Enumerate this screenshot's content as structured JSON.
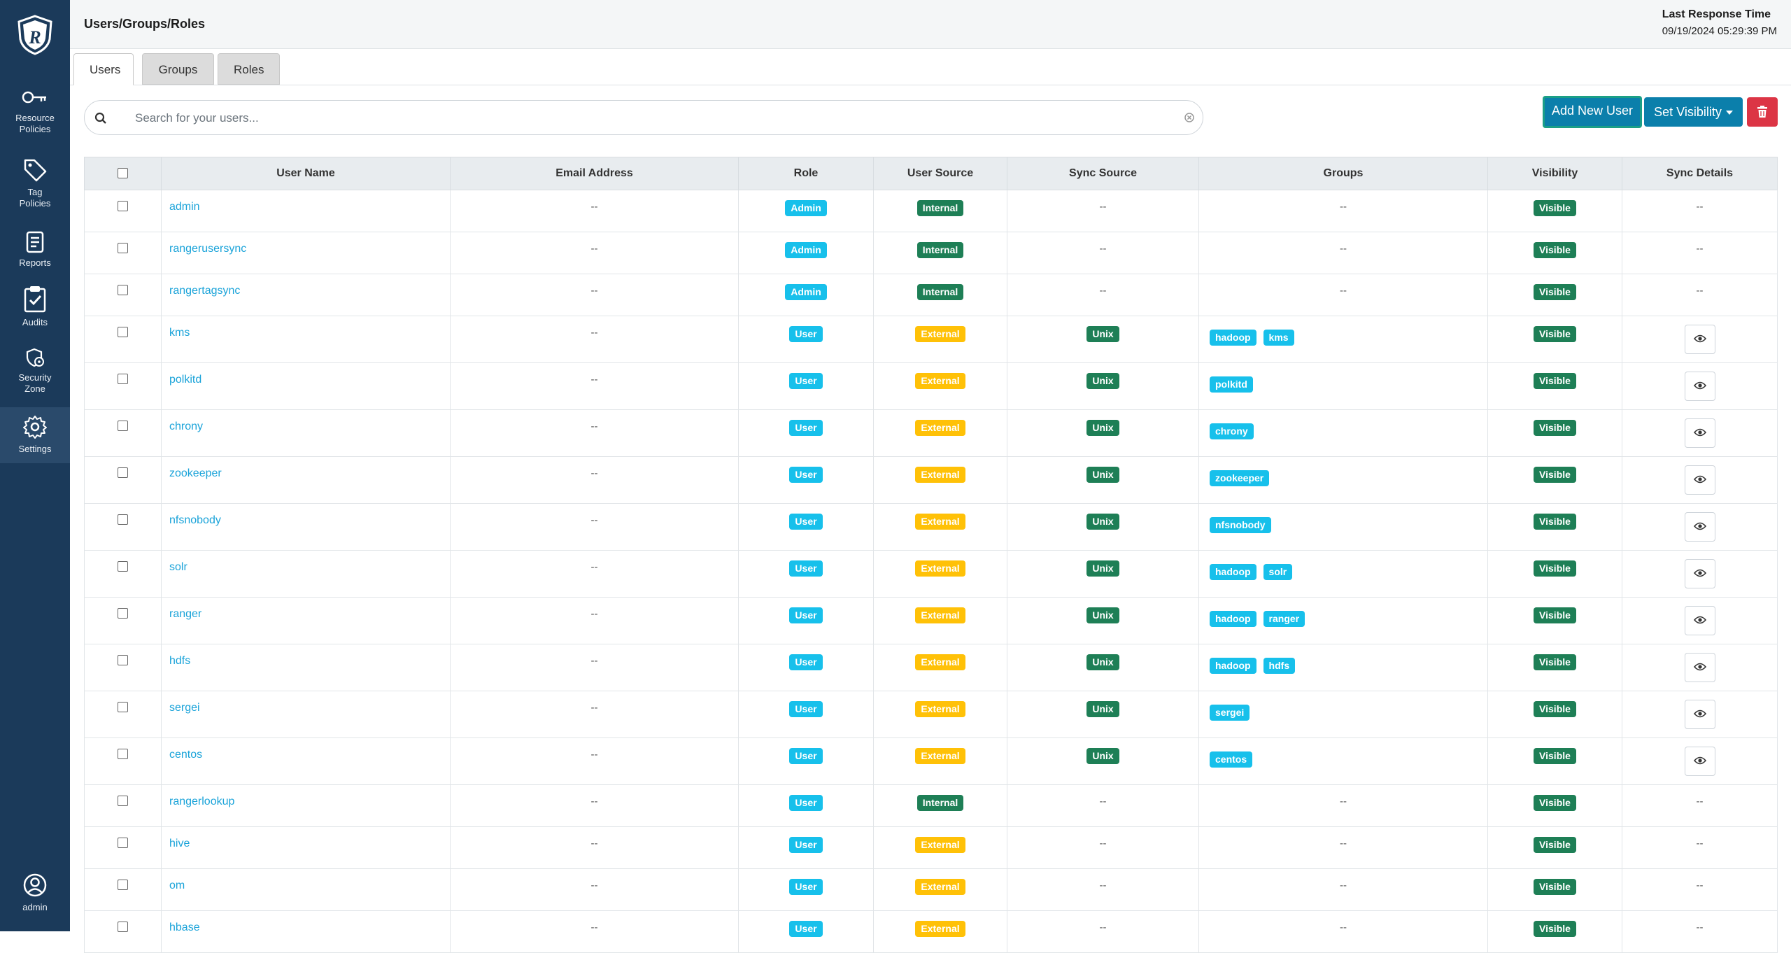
{
  "sidebar": {
    "items": [
      {
        "id": "resource-policies",
        "label": "Resource\nPolicies",
        "icon": "key-icon"
      },
      {
        "id": "tag-policies",
        "label": "Tag\nPolicies",
        "icon": "tag-icon"
      },
      {
        "id": "reports",
        "label": "Reports",
        "icon": "report-icon"
      },
      {
        "id": "audits",
        "label": "Audits",
        "icon": "clipboard-check-icon"
      },
      {
        "id": "security-zone",
        "label": "Security\nZone",
        "icon": "shield-lock-icon"
      },
      {
        "id": "settings",
        "label": "Settings",
        "icon": "gear-icon"
      }
    ],
    "user": {
      "label": "admin",
      "icon": "user-circle-icon"
    }
  },
  "header": {
    "title": "Users/Groups/Roles",
    "response_title": "Last Response Time",
    "response_time": "09/19/2024 05:29:39 PM"
  },
  "tabs": [
    {
      "label": "Users",
      "active": true
    },
    {
      "label": "Groups",
      "active": false
    },
    {
      "label": "Roles",
      "active": false
    }
  ],
  "search": {
    "placeholder": "Search for your users...",
    "value": ""
  },
  "actions": {
    "add_label": "Add New User",
    "visibility_label": "Set Visibility"
  },
  "table": {
    "columns": [
      "User Name",
      "Email Address",
      "Role",
      "User Source",
      "Sync Source",
      "Groups",
      "Visibility",
      "Sync Details"
    ],
    "rows": [
      {
        "name": "admin",
        "email": "--",
        "role": "Admin",
        "source": "Internal",
        "sync": "--",
        "groups": [],
        "visibility": "Visible",
        "sync_details": "--"
      },
      {
        "name": "rangerusersync",
        "email": "--",
        "role": "Admin",
        "source": "Internal",
        "sync": "--",
        "groups": [],
        "visibility": "Visible",
        "sync_details": "--"
      },
      {
        "name": "rangertagsync",
        "email": "--",
        "role": "Admin",
        "source": "Internal",
        "sync": "--",
        "groups": [],
        "visibility": "Visible",
        "sync_details": "--"
      },
      {
        "name": "kms",
        "email": "--",
        "role": "User",
        "source": "External",
        "sync": "Unix",
        "groups": [
          "hadoop",
          "kms"
        ],
        "visibility": "Visible",
        "sync_details": "eye"
      },
      {
        "name": "polkitd",
        "email": "--",
        "role": "User",
        "source": "External",
        "sync": "Unix",
        "groups": [
          "polkitd"
        ],
        "visibility": "Visible",
        "sync_details": "eye"
      },
      {
        "name": "chrony",
        "email": "--",
        "role": "User",
        "source": "External",
        "sync": "Unix",
        "groups": [
          "chrony"
        ],
        "visibility": "Visible",
        "sync_details": "eye"
      },
      {
        "name": "zookeeper",
        "email": "--",
        "role": "User",
        "source": "External",
        "sync": "Unix",
        "groups": [
          "zookeeper"
        ],
        "visibility": "Visible",
        "sync_details": "eye"
      },
      {
        "name": "nfsnobody",
        "email": "--",
        "role": "User",
        "source": "External",
        "sync": "Unix",
        "groups": [
          "nfsnobody"
        ],
        "visibility": "Visible",
        "sync_details": "eye"
      },
      {
        "name": "solr",
        "email": "--",
        "role": "User",
        "source": "External",
        "sync": "Unix",
        "groups": [
          "hadoop",
          "solr"
        ],
        "visibility": "Visible",
        "sync_details": "eye"
      },
      {
        "name": "ranger",
        "email": "--",
        "role": "User",
        "source": "External",
        "sync": "Unix",
        "groups": [
          "hadoop",
          "ranger"
        ],
        "visibility": "Visible",
        "sync_details": "eye"
      },
      {
        "name": "hdfs",
        "email": "--",
        "role": "User",
        "source": "External",
        "sync": "Unix",
        "groups": [
          "hadoop",
          "hdfs"
        ],
        "visibility": "Visible",
        "sync_details": "eye"
      },
      {
        "name": "sergei",
        "email": "--",
        "role": "User",
        "source": "External",
        "sync": "Unix",
        "groups": [
          "sergei"
        ],
        "visibility": "Visible",
        "sync_details": "eye"
      },
      {
        "name": "centos",
        "email": "--",
        "role": "User",
        "source": "External",
        "sync": "Unix",
        "groups": [
          "centos"
        ],
        "visibility": "Visible",
        "sync_details": "eye"
      },
      {
        "name": "rangerlookup",
        "email": "--",
        "role": "User",
        "source": "Internal",
        "sync": "--",
        "groups": [],
        "visibility": "Visible",
        "sync_details": "--"
      },
      {
        "name": "hive",
        "email": "--",
        "role": "User",
        "source": "External",
        "sync": "--",
        "groups": [],
        "visibility": "Visible",
        "sync_details": "--"
      },
      {
        "name": "om",
        "email": "--",
        "role": "User",
        "source": "External",
        "sync": "--",
        "groups": [],
        "visibility": "Visible",
        "sync_details": "--"
      },
      {
        "name": "hbase",
        "email": "--",
        "role": "User",
        "source": "External",
        "sync": "--",
        "groups": [],
        "visibility": "Visible",
        "sync_details": "--"
      }
    ]
  },
  "colors": {
    "sidebar": "#1b3a5a",
    "primary": "#0b7fab",
    "danger": "#dc3545",
    "info": "#17c0eb",
    "success": "#1e7f56",
    "warning": "#ffc107",
    "link": "#1aa3d9"
  }
}
